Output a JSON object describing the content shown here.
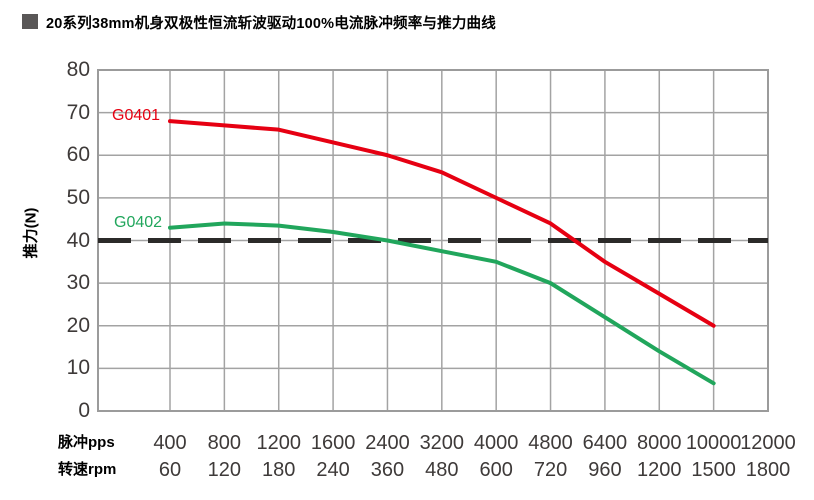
{
  "title": {
    "text": "20系列38mm机身双极性恒流斩波驱动100%电流脉冲频率与推力曲线"
  },
  "chart_data": {
    "type": "line",
    "title": "20系列38mm机身双极性恒流斩波驱动100%电流脉冲频率与推力曲线",
    "ylabel": "推力(N)",
    "ylim": [
      0,
      80
    ],
    "y_ticks": [
      0,
      10,
      20,
      30,
      40,
      50,
      60,
      70,
      80
    ],
    "grid": true,
    "legend_position": "inline-labels-left",
    "x_axis_rows": [
      {
        "label": "脉冲pps",
        "ticks": [
          "400",
          "800",
          "1200",
          "1600",
          "2400",
          "3200",
          "4000",
          "4800",
          "6400",
          "8000",
          "10000",
          "12000"
        ]
      },
      {
        "label": "转速rpm",
        "ticks": [
          "60",
          "120",
          "180",
          "240",
          "360",
          "480",
          "600",
          "720",
          "960",
          "1200",
          "1500",
          "1800"
        ]
      }
    ],
    "threshold_line": {
      "value": 40,
      "style": "dashed",
      "color": "#2b2a29"
    },
    "series": [
      {
        "name": "G0401",
        "color": "#e60012",
        "x_pps": [
          400,
          800,
          1200,
          1600,
          2400,
          3200,
          4000,
          4800,
          6400,
          8000,
          10000
        ],
        "values": [
          68,
          67,
          66,
          63,
          60,
          56,
          50,
          44,
          35,
          27.5,
          20
        ]
      },
      {
        "name": "G0402",
        "color": "#21a65c",
        "x_pps": [
          400,
          800,
          1200,
          1600,
          2400,
          3200,
          4000,
          4800,
          6400,
          8000,
          10000
        ],
        "values": [
          43,
          44,
          43.5,
          42,
          40,
          37.5,
          35,
          30,
          22,
          14,
          6.5
        ]
      }
    ],
    "colors": {
      "grid": "#a3a3a3",
      "border": "#9b9b9b",
      "tick_text": "#3e3a39",
      "title_text": "#000000",
      "title_bullet": "#595757"
    }
  }
}
